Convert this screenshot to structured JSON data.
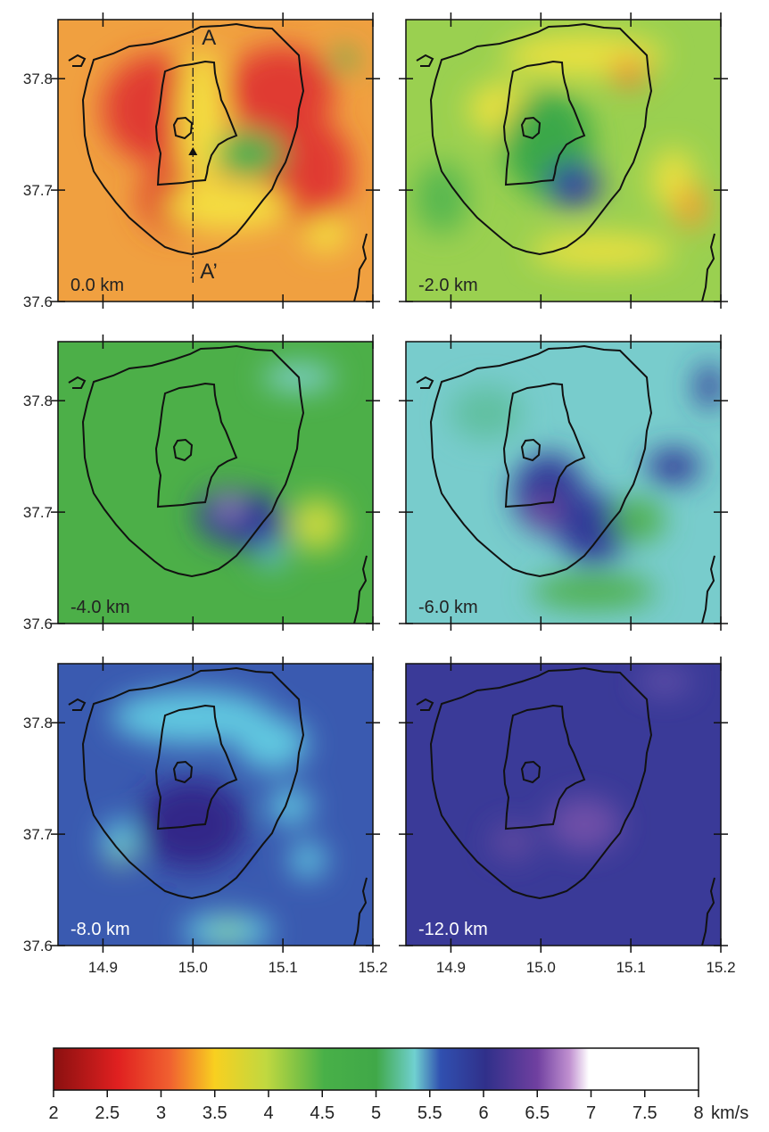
{
  "figure": {
    "panels": [
      {
        "label": "0.0 km"
      },
      {
        "label": "-2.0 km"
      },
      {
        "label": "-4.0 km"
      },
      {
        "label": "-6.0 km"
      },
      {
        "label": "-8.0 km"
      },
      {
        "label": "-12.0 km"
      }
    ],
    "profile": {
      "start": "A",
      "end": "A’"
    },
    "x_axis": {
      "lim": [
        14.85,
        15.2
      ],
      "ticks": [
        14.9,
        {
          "value": 15,
          "label": "15.0"
        },
        15.1,
        15.2
      ]
    },
    "y_axis": {
      "lim": [
        37.6,
        37.853
      ],
      "ticks": [
        37.6,
        37.7,
        37.8
      ]
    },
    "colorbar": {
      "lim": [
        2,
        8
      ],
      "ticks": [
        2,
        2.5,
        3,
        3.5,
        4,
        4.5,
        5,
        5.5,
        6,
        6.5,
        7,
        7.5,
        8
      ],
      "unit": "km/s"
    }
  }
}
